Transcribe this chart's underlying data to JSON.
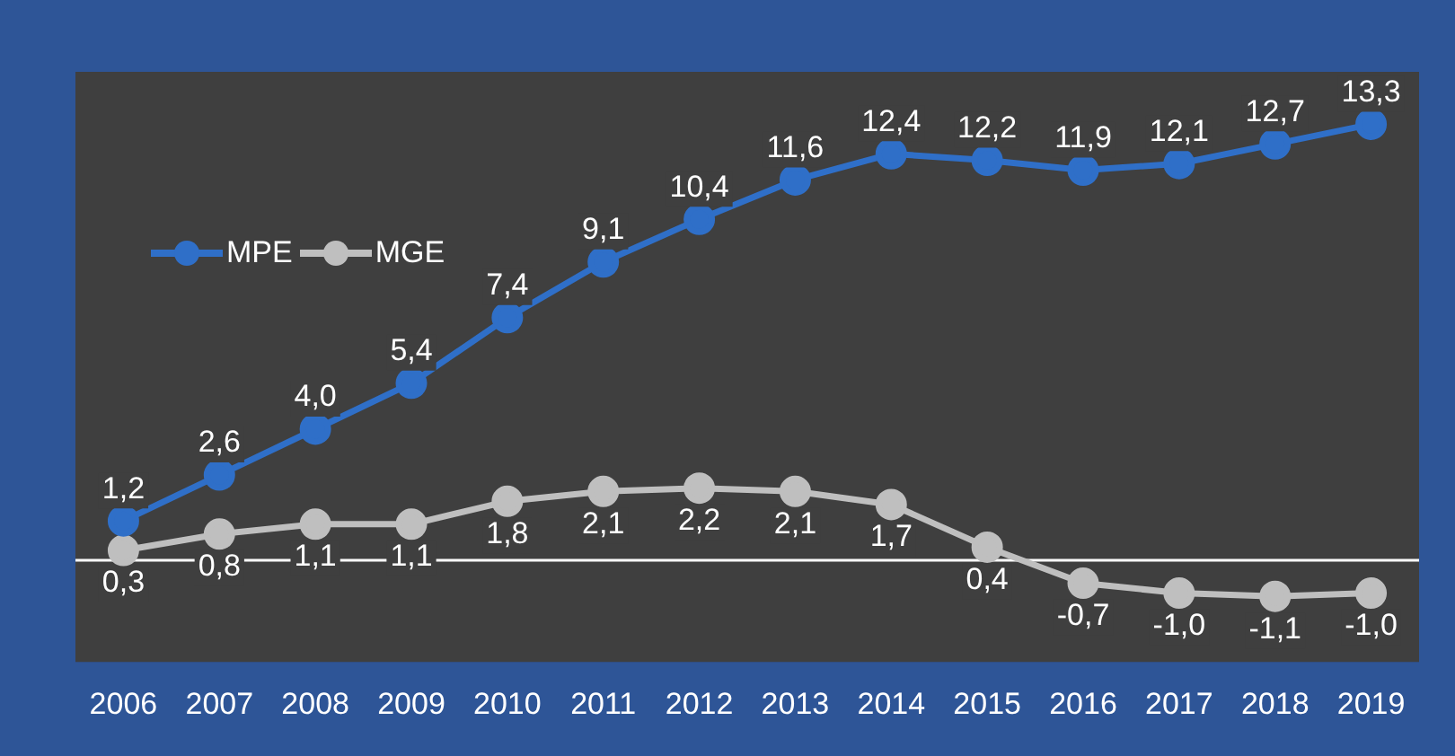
{
  "chart_data": {
    "type": "line",
    "categories": [
      "2006",
      "2007",
      "2008",
      "2009",
      "2010",
      "2011",
      "2012",
      "2013",
      "2014",
      "2015",
      "2016",
      "2017",
      "2018",
      "2019"
    ],
    "series": [
      {
        "name": "MPE",
        "color": "#2f6fc8",
        "values": [
          1.2,
          2.6,
          4.0,
          5.4,
          7.4,
          9.1,
          10.4,
          11.6,
          12.4,
          12.2,
          11.9,
          12.1,
          12.7,
          13.3
        ],
        "value_labels": [
          "1,2",
          "2,6",
          "4,0",
          "5,4",
          "7,4",
          "9,1",
          "10,4",
          "11,6",
          "12,4",
          "12,2",
          "11,9",
          "12,1",
          "12,7",
          "13,3"
        ]
      },
      {
        "name": "MGE",
        "color": "#bfbfbf",
        "values": [
          0.3,
          0.8,
          1.1,
          1.1,
          1.8,
          2.1,
          2.2,
          2.1,
          1.7,
          0.4,
          -0.7,
          -1.0,
          -1.1,
          -1.0
        ],
        "value_labels": [
          "0,3",
          "0,8",
          "1,1",
          "1,1",
          "1,8",
          "2,1",
          "2,2",
          "2,1",
          "1,7",
          "0,4",
          "-0,7",
          "-1,0",
          "-1,1",
          "-1,0"
        ]
      }
    ],
    "legend": "top left",
    "marker": "circle",
    "line_style": "solid",
    "grid": false
  }
}
